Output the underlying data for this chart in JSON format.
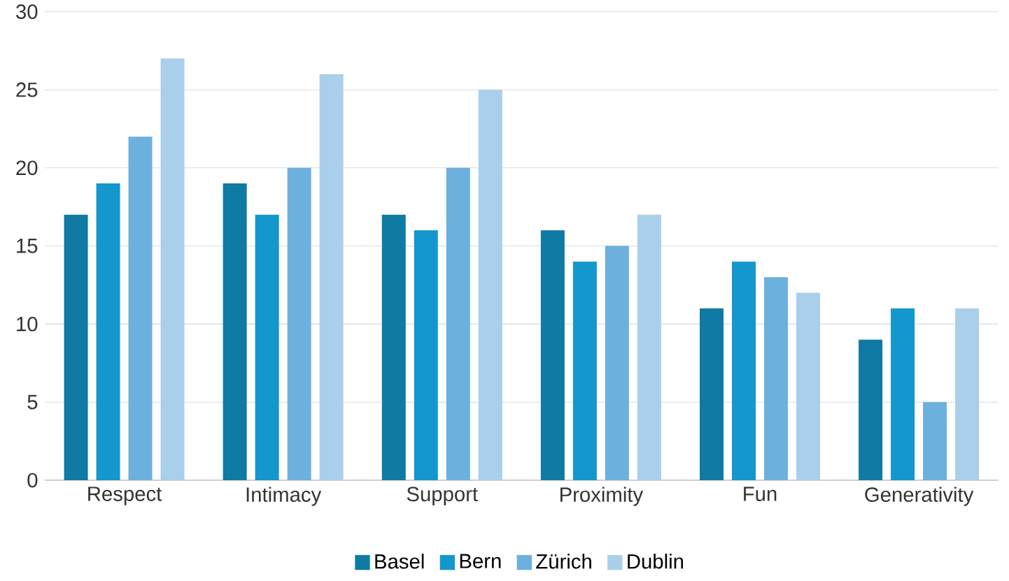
{
  "chart_data": {
    "type": "bar",
    "categories": [
      "Respect",
      "Intimacy",
      "Support",
      "Proximity",
      "Fun",
      "Generativity"
    ],
    "series": [
      {
        "name": "Basel",
        "color": "#0f7aa3",
        "values": [
          17,
          19,
          17,
          16,
          11,
          9
        ]
      },
      {
        "name": "Bern",
        "color": "#1497cc",
        "values": [
          19,
          17,
          16,
          14,
          14,
          11
        ]
      },
      {
        "name": "Zürich",
        "color": "#6cb0de",
        "values": [
          22,
          20,
          20,
          15,
          13,
          5
        ]
      },
      {
        "name": "Dublin",
        "color": "#a9cfea",
        "values": [
          27,
          26,
          25,
          17,
          12,
          11
        ]
      }
    ],
    "ylim": [
      0,
      30
    ],
    "yticks": [
      0,
      5,
      10,
      15,
      20,
      25,
      30
    ],
    "grid": "y",
    "legend": "bottom"
  }
}
